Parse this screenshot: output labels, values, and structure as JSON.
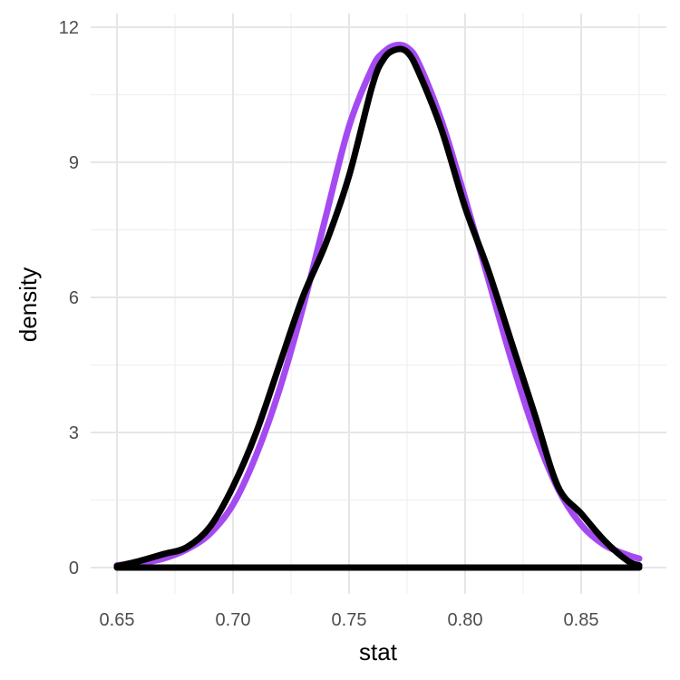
{
  "chart_data": {
    "type": "line",
    "title": "",
    "xlabel": "stat",
    "ylabel": "density",
    "xlim": [
      0.65,
      0.875
    ],
    "ylim": [
      0,
      12
    ],
    "x_ticks": [
      "0.65",
      "0.70",
      "0.75",
      "0.80",
      "0.85"
    ],
    "y_ticks": [
      "0",
      "3",
      "6",
      "9",
      "12"
    ],
    "grid": true,
    "legend": "none",
    "series": [
      {
        "color": "#a040f0",
        "x": [
          0.65,
          0.66,
          0.67,
          0.68,
          0.69,
          0.7,
          0.71,
          0.72,
          0.73,
          0.74,
          0.75,
          0.76,
          0.765,
          0.77,
          0.775,
          0.78,
          0.79,
          0.8,
          0.81,
          0.82,
          0.83,
          0.84,
          0.85,
          0.86,
          0.87,
          0.875
        ],
        "y": [
          0.05,
          0.1,
          0.2,
          0.4,
          0.75,
          1.4,
          2.5,
          3.95,
          5.75,
          7.8,
          9.8,
          11.1,
          11.45,
          11.6,
          11.55,
          11.2,
          9.9,
          8.2,
          6.4,
          4.6,
          3.0,
          1.75,
          0.95,
          0.5,
          0.28,
          0.2
        ]
      },
      {
        "color": "#000000",
        "x": [
          0.65,
          0.66,
          0.67,
          0.68,
          0.69,
          0.7,
          0.71,
          0.72,
          0.73,
          0.74,
          0.75,
          0.76,
          0.765,
          0.77,
          0.775,
          0.78,
          0.79,
          0.8,
          0.81,
          0.82,
          0.83,
          0.84,
          0.85,
          0.86,
          0.87,
          0.875
        ],
        "y": [
          0.03,
          0.15,
          0.3,
          0.45,
          0.9,
          1.8,
          3.0,
          4.5,
          6.0,
          7.2,
          8.7,
          10.7,
          11.3,
          11.5,
          11.45,
          11.0,
          9.7,
          8.0,
          6.6,
          5.0,
          3.4,
          1.8,
          1.2,
          0.6,
          0.15,
          0.05
        ]
      },
      {
        "color": "#000000",
        "x": [
          0.65,
          0.875
        ],
        "y": [
          0,
          0
        ]
      }
    ]
  }
}
